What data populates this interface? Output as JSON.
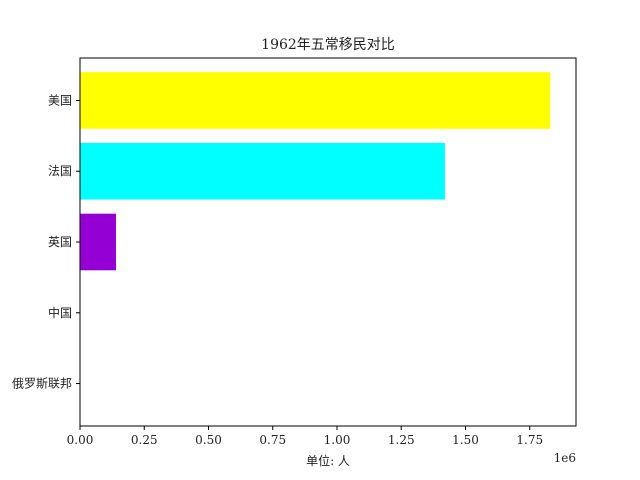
{
  "chart_data": {
    "type": "bar",
    "orientation": "horizontal",
    "title": "1962年五常移民对比",
    "xlabel": "单位: 人",
    "ylabel": "",
    "x_offset_text": "1e6",
    "xlim": [
      0,
      1930000
    ],
    "x_ticks": [
      0,
      250000,
      500000,
      750000,
      1000000,
      1250000,
      1500000,
      1750000
    ],
    "x_tick_labels": [
      "0.00",
      "0.25",
      "0.50",
      "0.75",
      "1.00",
      "1.25",
      "1.50",
      "1.75"
    ],
    "categories": [
      "俄罗斯联邦",
      "中国",
      "英国",
      "法国",
      "美国"
    ],
    "values": [
      0,
      0,
      140000,
      1420000,
      1830000
    ],
    "colors": [
      "#0000ff",
      "#ff0000",
      "#9400d3",
      "#00ffff",
      "#ffff00"
    ]
  }
}
